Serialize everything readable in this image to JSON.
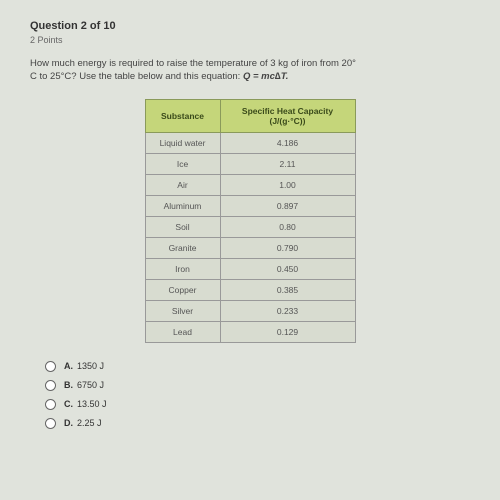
{
  "header": {
    "title": "Question 2 of 10",
    "points": "2 Points"
  },
  "question": {
    "line1": "How much energy is required to raise the temperature of 3 kg of iron from 20°",
    "line2": "C to 25°C? Use the table below and this equation: ",
    "equation": "Q = mc∆T."
  },
  "table": {
    "header_col1": "Substance",
    "header_col2": "Specific Heat Capacity (J/(g·°C))",
    "rows": [
      {
        "substance": "Liquid water",
        "value": "4.186"
      },
      {
        "substance": "Ice",
        "value": "2.11"
      },
      {
        "substance": "Air",
        "value": "1.00"
      },
      {
        "substance": "Aluminum",
        "value": "0.897"
      },
      {
        "substance": "Soil",
        "value": "0.80"
      },
      {
        "substance": "Granite",
        "value": "0.790"
      },
      {
        "substance": "Iron",
        "value": "0.450"
      },
      {
        "substance": "Copper",
        "value": "0.385"
      },
      {
        "substance": "Silver",
        "value": "0.233"
      },
      {
        "substance": "Lead",
        "value": "0.129"
      }
    ],
    "header_bg": "#c5d67a",
    "header_border": "#8a9a5a",
    "cell_bg": "#d8dcd0",
    "cell_border": "#999999"
  },
  "answers": [
    {
      "letter": "A.",
      "text": "1350 J"
    },
    {
      "letter": "B.",
      "text": "6750 J"
    },
    {
      "letter": "C.",
      "text": "13.50 J"
    },
    {
      "letter": "D.",
      "text": "2.25 J"
    }
  ]
}
